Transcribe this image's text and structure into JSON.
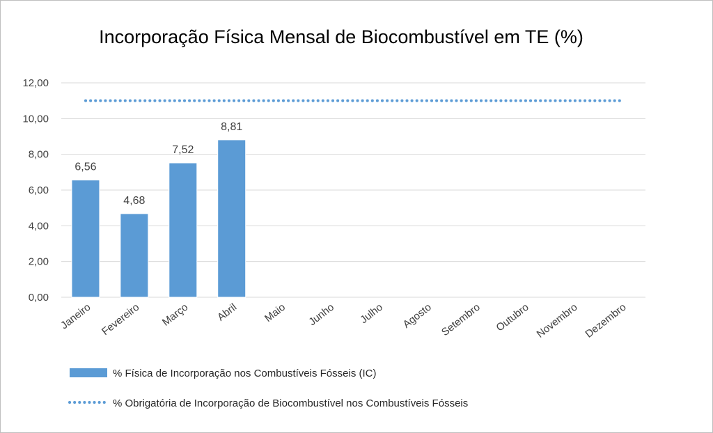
{
  "chart_data": {
    "type": "bar",
    "title": "Incorporação Física Mensal de Biocombustível em TE (%)",
    "categories": [
      "Janeiro",
      "Fevereiro",
      "Março",
      "Abril",
      "Maio",
      "Junho",
      "Julho",
      "Agosto",
      "Setembro",
      "Outubro",
      "Novembro",
      "Dezembro"
    ],
    "series": [
      {
        "name": "% Física de Incorporação nos Combustíveis Fósseis (IC)",
        "kind": "bar",
        "values": [
          6.56,
          4.68,
          7.52,
          8.81,
          null,
          null,
          null,
          null,
          null,
          null,
          null,
          null
        ],
        "data_labels": [
          "6,56",
          "4,68",
          "7,52",
          "8,81"
        ],
        "color": "#5b9bd5"
      },
      {
        "name": "% Obrigatória de Incorporação de Biocombustível nos Combustíveis Fósseis",
        "kind": "line-dotted",
        "values": [
          11,
          11,
          11,
          11,
          11,
          11,
          11,
          11,
          11,
          11,
          11,
          11
        ],
        "color": "#5b9bd5"
      }
    ],
    "ylim": [
      0,
      12
    ],
    "yticks": [
      0,
      2,
      4,
      6,
      8,
      10,
      12
    ],
    "ytick_labels": [
      "0,00",
      "2,00",
      "4,00",
      "6,00",
      "8,00",
      "10,00",
      "12,00"
    ],
    "grid": true,
    "legend": "bottom"
  }
}
